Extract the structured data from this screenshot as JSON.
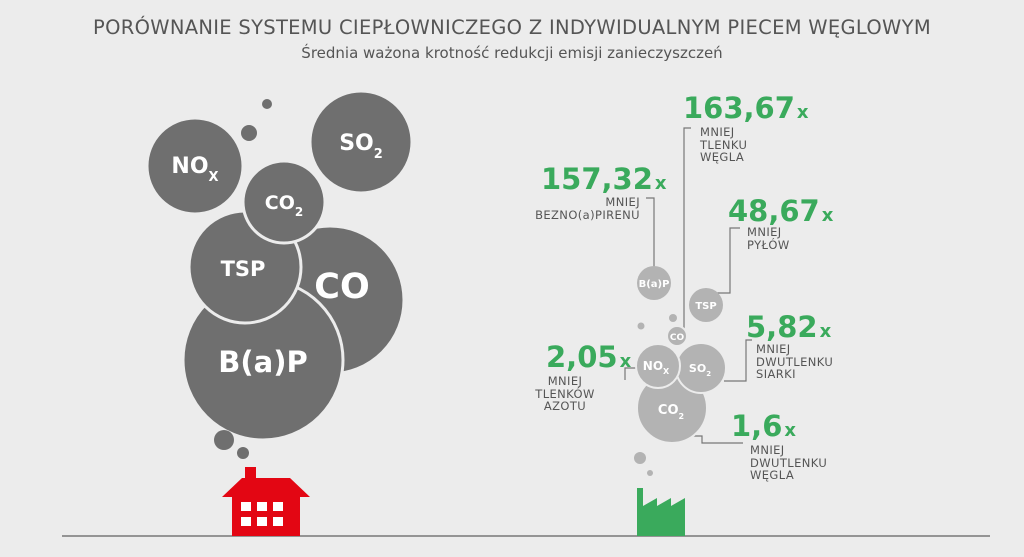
{
  "header": {
    "title": "PORÓWNANIE SYSTEMU CIEPŁOWNICZEGO Z INDYWIDUALNYM PIECEM WĘGLOWYM",
    "subtitle": "Średnia ważona krotność redukcji emisji zanieczyszczeń"
  },
  "left_bubbles": {
    "nox": {
      "main": "NO",
      "sub": "X"
    },
    "so2": {
      "main": "SO",
      "sub": "2"
    },
    "co2": {
      "main": "CO",
      "sub": "2"
    },
    "tsp": "TSP",
    "co": "CO",
    "bap": "B(a)P"
  },
  "right_bubbles": {
    "bap": "B(a)P",
    "tsp": "TSP",
    "co": "CO",
    "nox": {
      "main": "NO",
      "sub": "X"
    },
    "so2": {
      "main": "SO",
      "sub": "2"
    },
    "co2": {
      "main": "CO",
      "sub": "2"
    }
  },
  "annotations": {
    "co": {
      "value": "163,67",
      "mult": "x",
      "lines": [
        "MNIEJ",
        "TLENKU",
        "WĘGLA"
      ]
    },
    "bap": {
      "value": "157,32",
      "mult": "x",
      "lines": [
        "MNIEJ",
        "BEZNO(a)PIRENU"
      ]
    },
    "tsp": {
      "value": "48,67",
      "mult": "x",
      "lines": [
        "MNIEJ",
        "PYŁÓW"
      ]
    },
    "so2": {
      "value": "5,82",
      "mult": "x",
      "lines": [
        "MNIEJ",
        "DWUTLENKU",
        "SIARKI"
      ]
    },
    "nox": {
      "value": "2,05",
      "mult": "x",
      "lines": [
        "MNIEJ",
        "TLENKÓW",
        "AZOTU"
      ]
    },
    "co2": {
      "value": "1,6",
      "mult": "x",
      "lines": [
        "MNIEJ",
        "DWUTLENKU",
        "WĘGLA"
      ]
    }
  },
  "colors": {
    "background": "#ececec",
    "dark_bubble": "#6f6f6f",
    "light_bubble": "#b3b3b3",
    "accent_green": "#3aaa5c",
    "house_red": "#e30613",
    "text": "#555555"
  }
}
